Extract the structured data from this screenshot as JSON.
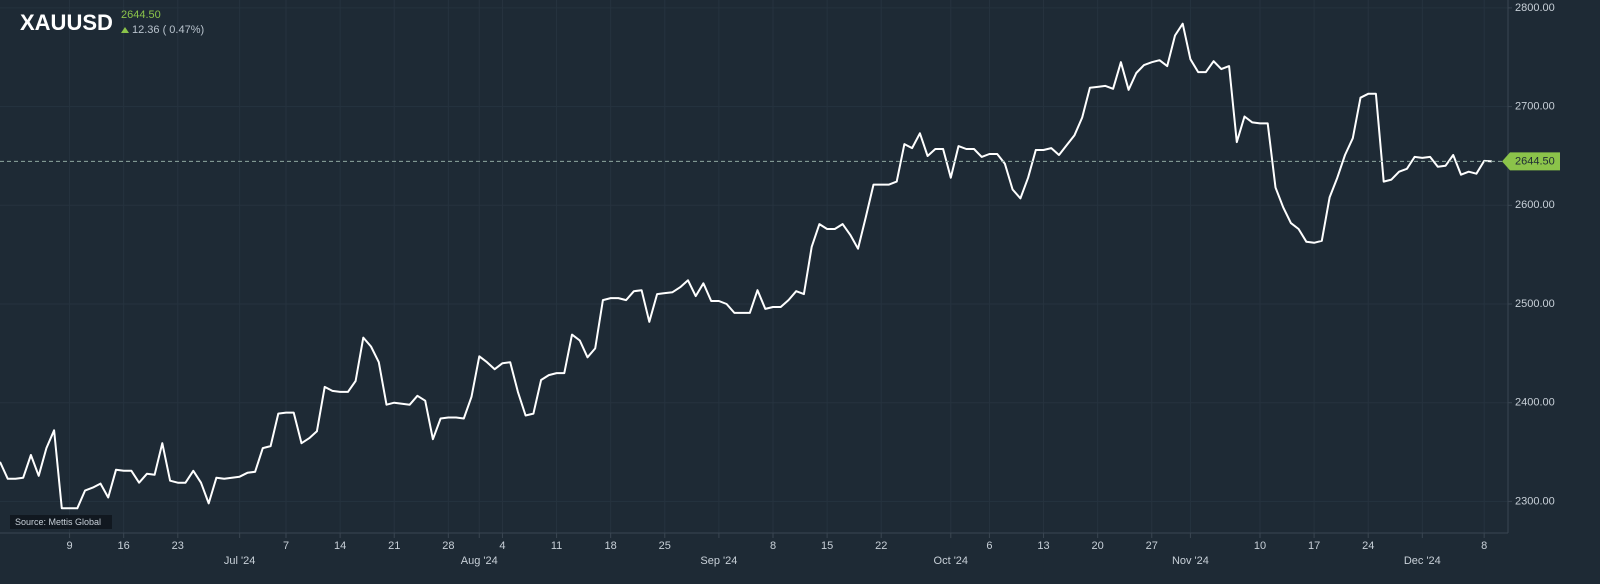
{
  "header": {
    "symbol": "XAUUSD",
    "price": "2644.50",
    "change": "12.36 ( 0.47%)"
  },
  "source": "Source: Mettis Global",
  "chart_data": {
    "type": "line",
    "title": "XAUUSD",
    "categories": [
      null,
      null,
      null,
      null,
      null,
      null,
      null,
      null,
      null,
      "9",
      null,
      null,
      null,
      null,
      null,
      null,
      "16",
      null,
      null,
      null,
      null,
      null,
      null,
      "23",
      null,
      null,
      null,
      null,
      null,
      null,
      null,
      "Jul '24",
      null,
      null,
      null,
      null,
      null,
      "7",
      null,
      null,
      null,
      null,
      null,
      null,
      "14",
      null,
      null,
      null,
      null,
      null,
      null,
      "21",
      null,
      null,
      null,
      null,
      null,
      null,
      "28",
      null,
      null,
      null,
      "Aug '24",
      null,
      null,
      "4",
      null,
      null,
      null,
      null,
      null,
      null,
      "11",
      null,
      null,
      null,
      null,
      null,
      null,
      "18",
      null,
      null,
      null,
      null,
      null,
      null,
      "25",
      null,
      null,
      null,
      null,
      null,
      null,
      "Sep '24",
      null,
      null,
      null,
      null,
      null,
      null,
      "8",
      null,
      null,
      null,
      null,
      null,
      null,
      "15",
      null,
      null,
      null,
      null,
      null,
      null,
      "22",
      null,
      null,
      null,
      null,
      null,
      null,
      null,
      null,
      "Oct '24",
      null,
      null,
      null,
      null,
      "6",
      null,
      null,
      null,
      null,
      null,
      null,
      "13",
      null,
      null,
      null,
      null,
      null,
      null,
      "20",
      null,
      null,
      null,
      null,
      null,
      null,
      "27",
      null,
      null,
      null,
      null,
      "Nov '24",
      null,
      null,
      null,
      null,
      null,
      null,
      null,
      null,
      "10",
      null,
      null,
      null,
      null,
      null,
      null,
      "17",
      null,
      null,
      null,
      null,
      null,
      null,
      "24",
      null,
      null,
      null,
      null,
      null,
      null,
      "Dec '24",
      null,
      null,
      null,
      null,
      null,
      null,
      null,
      "8",
      null
    ],
    "series": [
      {
        "name": "XAUUSD",
        "color": "#ffffff",
        "values": [
          2340,
          2323,
          2323,
          2324,
          2347,
          2326,
          2354,
          2372,
          2293,
          2293,
          2293,
          2311,
          2314,
          2318,
          2304,
          2332,
          2331,
          2331,
          2319,
          2328,
          2327,
          2359,
          2321,
          2319,
          2319,
          2331,
          2319,
          2298,
          2324,
          2323,
          2324,
          2325,
          2329,
          2330,
          2354,
          2356,
          2389,
          2390,
          2390,
          2359,
          2364,
          2371,
          2416,
          2412,
          2411,
          2411,
          2422,
          2466,
          2457,
          2441,
          2398,
          2400,
          2399,
          2398,
          2407,
          2402,
          2363,
          2384,
          2385,
          2385,
          2384,
          2406,
          2447,
          2441,
          2434,
          2440,
          2441,
          2411,
          2387,
          2389,
          2423,
          2428,
          2430,
          2430,
          2469,
          2463,
          2446,
          2455,
          2504,
          2506,
          2506,
          2504,
          2513,
          2514,
          2482,
          2510,
          2511,
          2512,
          2517,
          2524,
          2508,
          2521,
          2503,
          2503,
          2500,
          2491,
          2491,
          2491,
          2514,
          2495,
          2497,
          2497,
          2504,
          2513,
          2510,
          2558,
          2581,
          2576,
          2576,
          2581,
          2570,
          2556,
          2588,
          2621,
          2621,
          2621,
          2624,
          2662,
          2658,
          2673,
          2650,
          2657,
          2657,
          2628,
          2660,
          2657,
          2657,
          2649,
          2652,
          2652,
          2642,
          2616,
          2607,
          2628,
          2656,
          2656,
          2658,
          2651,
          2661,
          2671,
          2689,
          2719,
          2720,
          2721,
          2718,
          2745,
          2717,
          2734,
          2742,
          2745,
          2747,
          2741,
          2772,
          2784,
          2748,
          2735,
          2735,
          2746,
          2738,
          2741,
          2664,
          2690,
          2684,
          2683,
          2683,
          2618,
          2598,
          2582,
          2576,
          2563,
          2562,
          2564,
          2608,
          2628,
          2651,
          2668,
          2709,
          2713,
          2713,
          2624,
          2626,
          2634,
          2637,
          2649,
          2648,
          2649,
          2639,
          2640,
          2651,
          2631,
          2634,
          2632,
          2645,
          2644.5
        ]
      }
    ],
    "ylim": [
      2268,
      2808
    ],
    "yticks": [
      {
        "value": 2300,
        "label": "2300.00"
      },
      {
        "value": 2400,
        "label": "2400.00"
      },
      {
        "value": 2500,
        "label": "2500.00"
      },
      {
        "value": 2600,
        "label": "2600.00"
      },
      {
        "value": 2700,
        "label": "2700.00"
      },
      {
        "value": 2800,
        "label": "2800.00"
      }
    ],
    "price_tag": {
      "value": 2644.5,
      "label": "2644.50"
    },
    "grid": true,
    "tag_color": "#8bc34a"
  }
}
